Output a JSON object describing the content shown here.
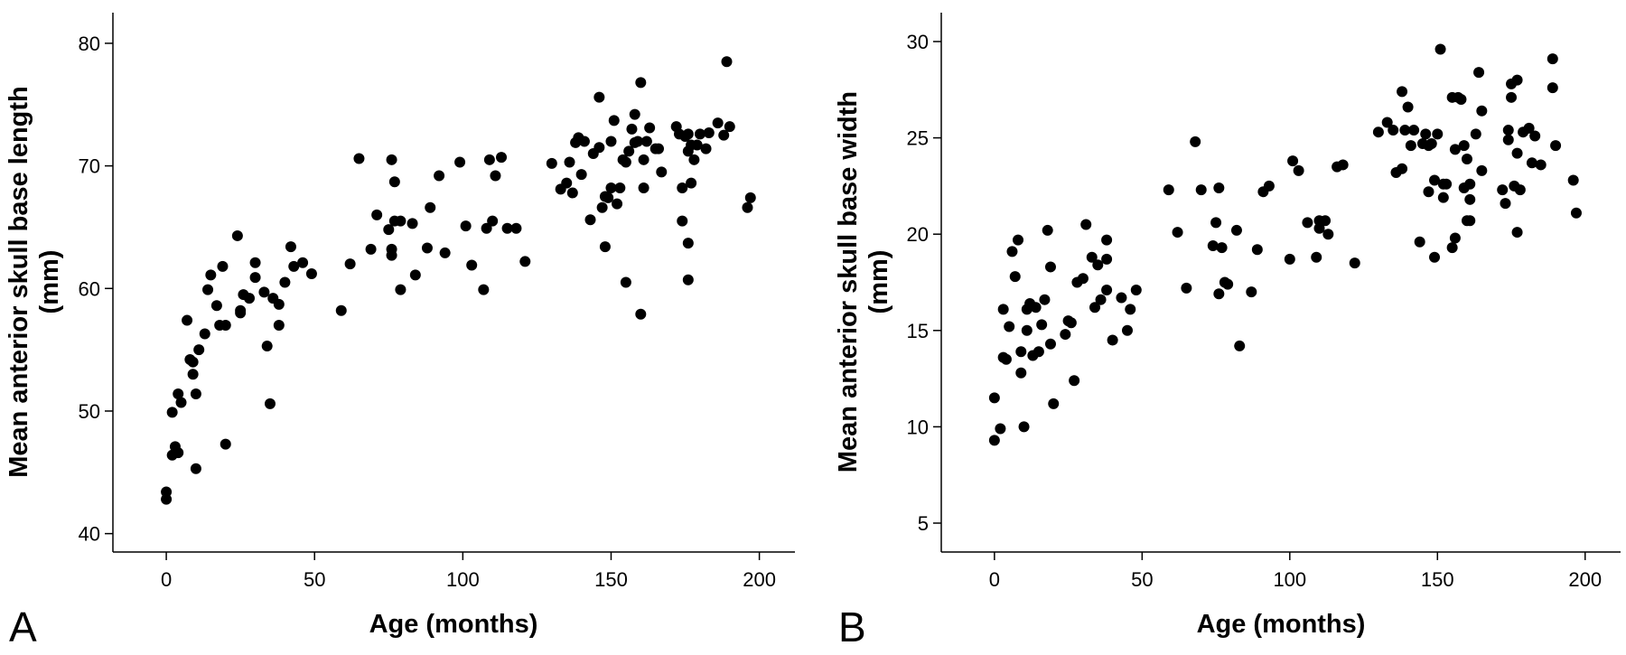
{
  "chart_data": [
    {
      "type": "scatter",
      "panel": "A",
      "xlabel": "Age (months)",
      "ylabel_line1": "Mean anterior skull base length",
      "ylabel_line2": "(mm)",
      "xlim": [
        -18,
        212
      ],
      "ylim": [
        38.5,
        82.5
      ],
      "xticks": [
        0,
        50,
        100,
        150,
        200
      ],
      "yticks": [
        40,
        50,
        60,
        70,
        80
      ],
      "points": [
        [
          0,
          43.4
        ],
        [
          0,
          42.8
        ],
        [
          2,
          46.4
        ],
        [
          2,
          49.9
        ],
        [
          3,
          47.1
        ],
        [
          4,
          46.6
        ],
        [
          4,
          51.4
        ],
        [
          5,
          50.7
        ],
        [
          7,
          57.4
        ],
        [
          8,
          54.2
        ],
        [
          9,
          54.0
        ],
        [
          9,
          53.0
        ],
        [
          10,
          51.4
        ],
        [
          10,
          45.3
        ],
        [
          11,
          55.0
        ],
        [
          13,
          56.3
        ],
        [
          14,
          59.9
        ],
        [
          15,
          61.1
        ],
        [
          17,
          58.6
        ],
        [
          18,
          57.0
        ],
        [
          19,
          61.8
        ],
        [
          20,
          57.0
        ],
        [
          20,
          47.3
        ],
        [
          24,
          64.3
        ],
        [
          25,
          58.2
        ],
        [
          25,
          58.0
        ],
        [
          26,
          59.5
        ],
        [
          28,
          59.2
        ],
        [
          30,
          62.1
        ],
        [
          30,
          60.9
        ],
        [
          33,
          59.7
        ],
        [
          34,
          55.3
        ],
        [
          35,
          50.6
        ],
        [
          36,
          59.2
        ],
        [
          38,
          58.7
        ],
        [
          38,
          57.0
        ],
        [
          40,
          60.5
        ],
        [
          42,
          63.4
        ],
        [
          43,
          61.8
        ],
        [
          46,
          62.1
        ],
        [
          49,
          61.2
        ],
        [
          59,
          58.2
        ],
        [
          62,
          62.0
        ],
        [
          65,
          70.6
        ],
        [
          69,
          63.2
        ],
        [
          71,
          66.0
        ],
        [
          75,
          64.8
        ],
        [
          76,
          63.2
        ],
        [
          76,
          70.5
        ],
        [
          76,
          62.7
        ],
        [
          77,
          68.7
        ],
        [
          77,
          65.5
        ],
        [
          79,
          65.5
        ],
        [
          79,
          59.9
        ],
        [
          83,
          65.3
        ],
        [
          84,
          61.1
        ],
        [
          88,
          63.3
        ],
        [
          89,
          66.6
        ],
        [
          92,
          69.2
        ],
        [
          94,
          62.9
        ],
        [
          99,
          70.3
        ],
        [
          101,
          65.1
        ],
        [
          103,
          61.9
        ],
        [
          107,
          59.9
        ],
        [
          108,
          64.9
        ],
        [
          109,
          70.5
        ],
        [
          110,
          65.5
        ],
        [
          111,
          69.2
        ],
        [
          113,
          70.7
        ],
        [
          115,
          64.9
        ],
        [
          118,
          64.9
        ],
        [
          121,
          62.2
        ],
        [
          130,
          70.2
        ],
        [
          133,
          68.1
        ],
        [
          135,
          68.6
        ],
        [
          136,
          70.3
        ],
        [
          137,
          67.8
        ],
        [
          138,
          71.9
        ],
        [
          139,
          72.3
        ],
        [
          140,
          69.3
        ],
        [
          141,
          72.0
        ],
        [
          143,
          65.6
        ],
        [
          144,
          71.0
        ],
        [
          146,
          71.5
        ],
        [
          146,
          75.6
        ],
        [
          147,
          66.6
        ],
        [
          148,
          67.5
        ],
        [
          148,
          63.4
        ],
        [
          149,
          67.4
        ],
        [
          150,
          72.0
        ],
        [
          150,
          68.2
        ],
        [
          151,
          73.7
        ],
        [
          152,
          66.9
        ],
        [
          153,
          68.2
        ],
        [
          154,
          70.5
        ],
        [
          155,
          70.3
        ],
        [
          155,
          60.5
        ],
        [
          156,
          71.2
        ],
        [
          157,
          73.0
        ],
        [
          158,
          74.2
        ],
        [
          158,
          71.9
        ],
        [
          159,
          72.0
        ],
        [
          160,
          76.8
        ],
        [
          160,
          57.9
        ],
        [
          161,
          70.5
        ],
        [
          161,
          68.2
        ],
        [
          162,
          72.0
        ],
        [
          163,
          73.1
        ],
        [
          165,
          71.4
        ],
        [
          166,
          71.4
        ],
        [
          167,
          69.5
        ],
        [
          172,
          73.2
        ],
        [
          173,
          72.6
        ],
        [
          174,
          65.5
        ],
        [
          174,
          68.2
        ],
        [
          175,
          72.4
        ],
        [
          176,
          72.6
        ],
        [
          176,
          71.2
        ],
        [
          176,
          63.7
        ],
        [
          176,
          60.7
        ],
        [
          177,
          68.6
        ],
        [
          177,
          71.7
        ],
        [
          178,
          70.5
        ],
        [
          179,
          71.7
        ],
        [
          180,
          72.6
        ],
        [
          182,
          71.4
        ],
        [
          183,
          72.7
        ],
        [
          186,
          73.5
        ],
        [
          188,
          72.5
        ],
        [
          189,
          78.5
        ],
        [
          190,
          73.2
        ],
        [
          196,
          66.6
        ],
        [
          197,
          67.4
        ]
      ]
    },
    {
      "type": "scatter",
      "panel": "B",
      "xlabel": "Age (months)",
      "ylabel_line1": "Mean anterior skull base width",
      "ylabel_line2": "(mm)",
      "xlim": [
        -18,
        212
      ],
      "ylim": [
        3.5,
        31.5
      ],
      "xticks": [
        0,
        50,
        100,
        150,
        200
      ],
      "yticks": [
        5,
        10,
        15,
        20,
        25,
        30
      ],
      "points": [
        [
          0,
          9.3
        ],
        [
          0,
          11.5
        ],
        [
          2,
          9.9
        ],
        [
          3,
          16.1
        ],
        [
          3,
          13.6
        ],
        [
          4,
          13.5
        ],
        [
          5,
          15.2
        ],
        [
          6,
          19.1
        ],
        [
          7,
          17.8
        ],
        [
          8,
          19.7
        ],
        [
          9,
          12.8
        ],
        [
          9,
          13.9
        ],
        [
          10,
          10.0
        ],
        [
          11,
          16.1
        ],
        [
          11,
          15.0
        ],
        [
          12,
          16.4
        ],
        [
          13,
          13.7
        ],
        [
          14,
          16.2
        ],
        [
          15,
          13.9
        ],
        [
          16,
          15.3
        ],
        [
          17,
          16.6
        ],
        [
          18,
          20.2
        ],
        [
          19,
          18.3
        ],
        [
          19,
          14.3
        ],
        [
          20,
          11.2
        ],
        [
          24,
          14.8
        ],
        [
          25,
          15.5
        ],
        [
          26,
          15.4
        ],
        [
          27,
          12.4
        ],
        [
          28,
          17.5
        ],
        [
          30,
          17.7
        ],
        [
          31,
          20.5
        ],
        [
          33,
          18.8
        ],
        [
          34,
          16.2
        ],
        [
          35,
          18.4
        ],
        [
          36,
          16.6
        ],
        [
          38,
          18.7
        ],
        [
          38,
          17.1
        ],
        [
          38,
          19.7
        ],
        [
          40,
          14.5
        ],
        [
          43,
          16.7
        ],
        [
          45,
          15.0
        ],
        [
          46,
          16.1
        ],
        [
          48,
          17.1
        ],
        [
          59,
          22.3
        ],
        [
          62,
          20.1
        ],
        [
          65,
          17.2
        ],
        [
          68,
          24.8
        ],
        [
          70,
          22.3
        ],
        [
          74,
          19.4
        ],
        [
          75,
          20.6
        ],
        [
          76,
          16.9
        ],
        [
          76,
          22.4
        ],
        [
          77,
          19.3
        ],
        [
          78,
          17.5
        ],
        [
          79,
          17.4
        ],
        [
          82,
          20.2
        ],
        [
          83,
          14.2
        ],
        [
          87,
          17.0
        ],
        [
          89,
          19.2
        ],
        [
          91,
          22.2
        ],
        [
          93,
          22.5
        ],
        [
          100,
          18.7
        ],
        [
          101,
          23.8
        ],
        [
          103,
          23.3
        ],
        [
          106,
          20.6
        ],
        [
          109,
          18.8
        ],
        [
          110,
          20.3
        ],
        [
          110,
          20.7
        ],
        [
          112,
          20.7
        ],
        [
          113,
          20.0
        ],
        [
          116,
          23.5
        ],
        [
          118,
          23.6
        ],
        [
          122,
          18.5
        ],
        [
          130,
          25.3
        ],
        [
          133,
          25.8
        ],
        [
          135,
          25.4
        ],
        [
          136,
          23.2
        ],
        [
          138,
          23.4
        ],
        [
          138,
          27.4
        ],
        [
          139,
          25.4
        ],
        [
          140,
          26.6
        ],
        [
          141,
          24.6
        ],
        [
          142,
          25.4
        ],
        [
          144,
          19.6
        ],
        [
          145,
          24.7
        ],
        [
          146,
          25.2
        ],
        [
          147,
          22.2
        ],
        [
          147,
          24.6
        ],
        [
          148,
          24.7
        ],
        [
          149,
          22.8
        ],
        [
          149,
          18.8
        ],
        [
          150,
          25.2
        ],
        [
          151,
          29.6
        ],
        [
          152,
          22.6
        ],
        [
          152,
          21.9
        ],
        [
          153,
          22.6
        ],
        [
          155,
          19.3
        ],
        [
          155,
          27.1
        ],
        [
          156,
          19.8
        ],
        [
          156,
          24.4
        ],
        [
          157,
          27.1
        ],
        [
          158,
          27.0
        ],
        [
          159,
          22.4
        ],
        [
          159,
          24.6
        ],
        [
          160,
          23.9
        ],
        [
          160,
          20.7
        ],
        [
          161,
          22.6
        ],
        [
          161,
          21.8
        ],
        [
          161,
          20.7
        ],
        [
          163,
          25.2
        ],
        [
          164,
          28.4
        ],
        [
          165,
          26.4
        ],
        [
          165,
          23.3
        ],
        [
          172,
          22.3
        ],
        [
          173,
          21.6
        ],
        [
          174,
          25.4
        ],
        [
          174,
          24.9
        ],
        [
          175,
          27.1
        ],
        [
          175,
          27.8
        ],
        [
          176,
          22.5
        ],
        [
          177,
          20.1
        ],
        [
          177,
          24.2
        ],
        [
          177,
          28.0
        ],
        [
          178,
          22.3
        ],
        [
          179,
          25.3
        ],
        [
          181,
          25.5
        ],
        [
          182,
          23.7
        ],
        [
          183,
          25.1
        ],
        [
          185,
          23.6
        ],
        [
          189,
          27.6
        ],
        [
          189,
          29.1
        ],
        [
          190,
          24.6
        ],
        [
          196,
          22.8
        ],
        [
          197,
          21.1
        ]
      ]
    }
  ]
}
